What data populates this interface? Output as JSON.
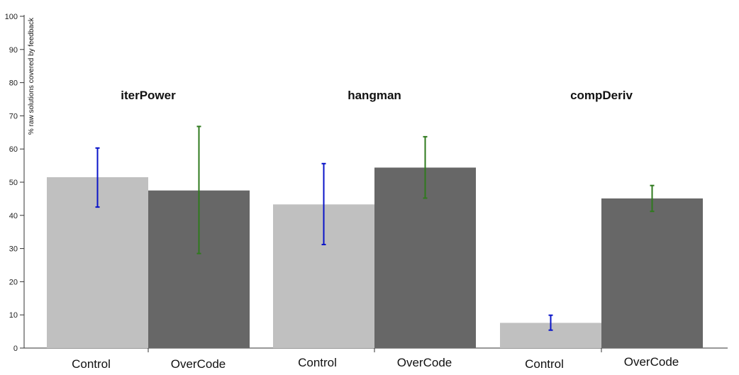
{
  "chart_data": {
    "type": "bar",
    "title": "",
    "xlabel": "",
    "ylabel": "% raw solutions covered by feedback",
    "ylim": [
      0,
      100
    ],
    "yticks": [
      0,
      10,
      20,
      30,
      40,
      50,
      60,
      70,
      80,
      90,
      100
    ],
    "grid": false,
    "groups": [
      {
        "title": "iterPower",
        "bars": [
          {
            "category": "Control",
            "value": 51.5,
            "err_low": 42.5,
            "err_high": 60.3
          },
          {
            "category": "OverCode",
            "value": 47.5,
            "err_low": 28.5,
            "err_high": 66.8
          }
        ]
      },
      {
        "title": "hangman",
        "bars": [
          {
            "category": "Control",
            "value": 43.3,
            "err_low": 31.2,
            "err_high": 55.6
          },
          {
            "category": "OverCode",
            "value": 54.4,
            "err_low": 45.2,
            "err_high": 63.7
          }
        ]
      },
      {
        "title": "compDeriv",
        "bars": [
          {
            "category": "Control",
            "value": 7.6,
            "err_low": 5.4,
            "err_high": 9.9
          },
          {
            "category": "OverCode",
            "value": 45.1,
            "err_low": 41.2,
            "err_high": 49.0
          }
        ]
      }
    ],
    "colors": {
      "Control": "#c0c0c0",
      "OverCode": "#676767",
      "Control_error": "#0a14c8",
      "OverCode_error": "#2f7a1e"
    }
  }
}
